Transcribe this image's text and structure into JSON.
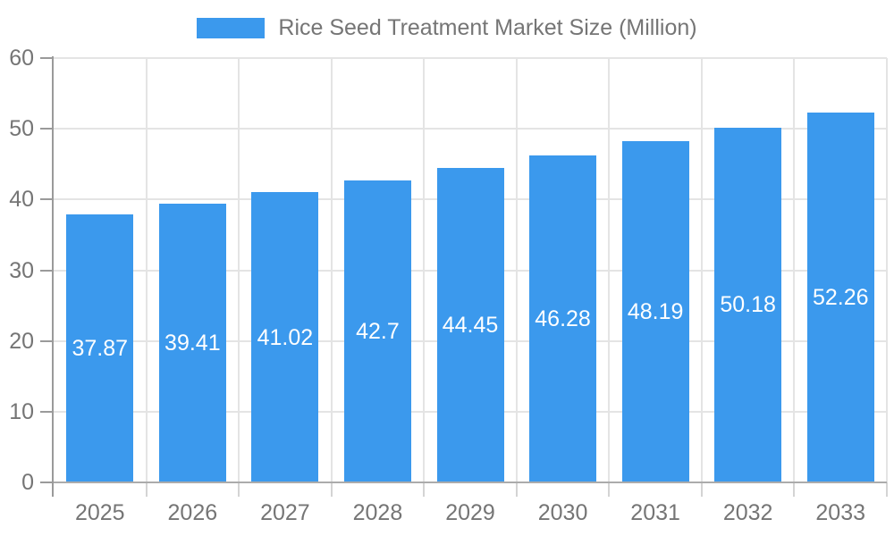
{
  "chart_data": {
    "type": "bar",
    "title": "Rice Seed Treatment Market Size (Million)",
    "categories": [
      "2025",
      "2026",
      "2027",
      "2028",
      "2029",
      "2030",
      "2031",
      "2032",
      "2033"
    ],
    "series": [
      {
        "name": "Rice Seed Treatment Market Size (Million)",
        "values": [
          37.87,
          39.41,
          41.02,
          42.7,
          44.45,
          46.28,
          48.19,
          50.18,
          52.26
        ]
      }
    ],
    "value_labels": [
      "37.87",
      "39.41",
      "41.02",
      "42.7",
      "44.45",
      "46.28",
      "48.19",
      "50.18",
      "52.26"
    ],
    "xlabel": "",
    "ylabel": "",
    "ylim": [
      0,
      60
    ],
    "yticks": [
      0,
      10,
      20,
      30,
      40,
      50,
      60
    ],
    "grid": true,
    "legend_position": "top",
    "bar_color": "#3b99ed",
    "value_label_color": "#ffffff",
    "axis_label_color": "#757575",
    "gridline_color": "#e4e4e4",
    "axis_line_color": "#9a9a9a"
  }
}
